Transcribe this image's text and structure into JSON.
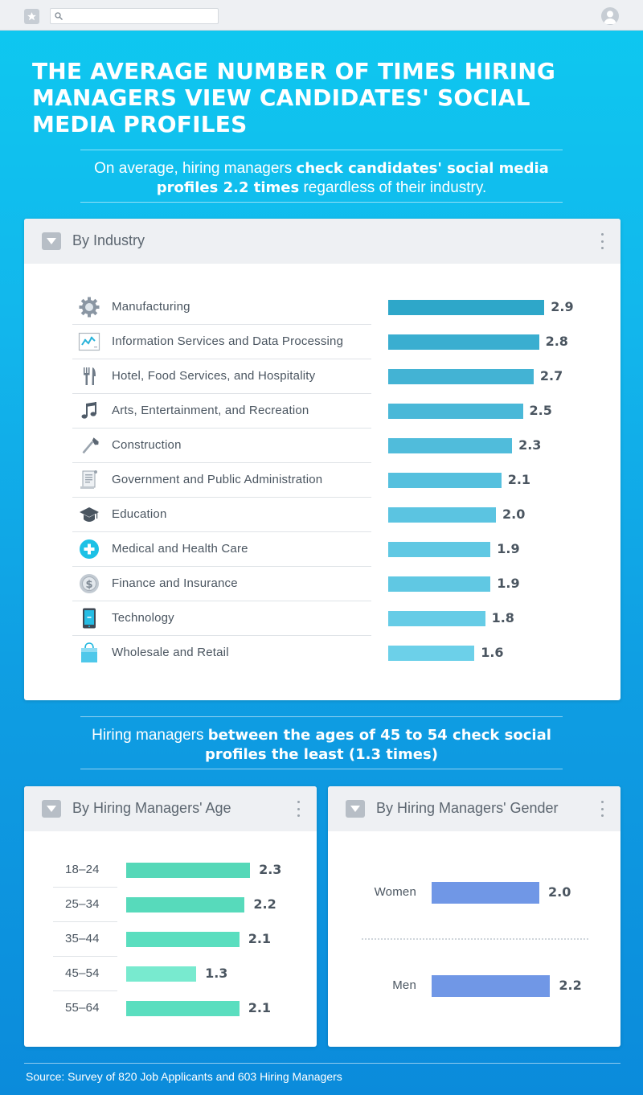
{
  "browser": {
    "search_placeholder": "",
    "icons": {
      "favorite": "star-icon",
      "search": "search-icon",
      "profile": "user-avatar-icon"
    }
  },
  "title": "THE AVERAGE NUMBER OF TIMES HIRING MANAGERS VIEW CANDIDATES' SOCIAL MEDIA PROFILES",
  "intro": {
    "pre": "On average, hiring managers ",
    "bold": "check candidates' social media profiles 2.2 times",
    "post": " regardless of their industry."
  },
  "callout": {
    "pre": "Hiring managers ",
    "bold": "between the ages of 45 to 54 check social profiles the least (1.3 times)",
    "post": ""
  },
  "source": "Source: Survey of 820 Job Applicants and 603 Hiring Managers",
  "cards": {
    "industry": {
      "title": "By Industry"
    },
    "age": {
      "title": "By Hiring Managers' Age"
    },
    "gender": {
      "title": "By Hiring Managers' Gender"
    }
  },
  "chart_data": [
    {
      "type": "bar",
      "orientation": "horizontal",
      "title": "By Industry",
      "categories": [
        "Manufacturing",
        "Information Services and Data Processing",
        "Hotel, Food Services, and Hospitality",
        "Arts, Entertainment, and Recreation",
        "Construction",
        "Government and Public Administration",
        "Education",
        "Medical and Health Care",
        "Finance and Insurance",
        "Technology",
        "Wholesale and Retail"
      ],
      "values": [
        2.9,
        2.8,
        2.7,
        2.5,
        2.3,
        2.1,
        2.0,
        1.9,
        1.9,
        1.8,
        1.6
      ],
      "data_labels": [
        "2.9",
        "2.8",
        "2.7",
        "2.5",
        "2.3",
        "2.1",
        "2.0",
        "1.9",
        "1.9",
        "1.8",
        "1.6"
      ],
      "icons": [
        "gear-icon",
        "chart-line-icon",
        "fork-knife-icon",
        "music-note-icon",
        "hammer-icon",
        "document-icon",
        "graduation-cap-icon",
        "medical-plus-icon",
        "dollar-coin-icon",
        "tablet-icon",
        "shopping-bag-icon"
      ],
      "colors": [
        "#2ea7c9",
        "#3aaed0",
        "#43b3d4",
        "#4ab8d8",
        "#50bcdb",
        "#55c0de",
        "#5bc4e1",
        "#60c8e3",
        "#60c8e3",
        "#66cce6",
        "#6cd0e9"
      ]
    },
    {
      "type": "bar",
      "orientation": "horizontal",
      "title": "By Hiring Managers' Age",
      "categories": [
        "18–24",
        "25–34",
        "35–44",
        "45–54",
        "55–64"
      ],
      "values": [
        2.3,
        2.2,
        2.1,
        1.3,
        2.1
      ],
      "data_labels": [
        "2.3",
        "2.2",
        "2.1",
        "1.3",
        "2.1"
      ],
      "colors": [
        "#55d8b8",
        "#57dabb",
        "#5adebf",
        "#78eacf",
        "#5adebf"
      ]
    },
    {
      "type": "bar",
      "orientation": "horizontal",
      "title": "By Hiring Managers' Gender",
      "categories": [
        "Women",
        "Men"
      ],
      "values": [
        2.0,
        2.2
      ],
      "data_labels": [
        "2.0",
        "2.2"
      ],
      "colors": [
        "#7097e6",
        "#7097e6"
      ]
    }
  ]
}
